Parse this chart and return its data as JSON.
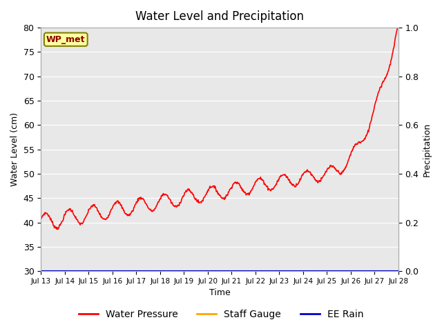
{
  "title": "Water Level and Precipitation",
  "xlabel": "Time",
  "ylabel_left": "Water Level (cm)",
  "ylabel_right": "Precipitation",
  "annotation_text": "WP_met",
  "annotation_bg": "#FFFFA0",
  "annotation_border": "#808000",
  "annotation_text_color": "#8B0000",
  "ylim_left": [
    30,
    80
  ],
  "ylim_right": [
    0.0,
    1.0
  ],
  "yticks_left": [
    30,
    35,
    40,
    45,
    50,
    55,
    60,
    65,
    70,
    75,
    80
  ],
  "yticks_right": [
    0.0,
    0.2,
    0.4,
    0.6,
    0.8,
    1.0
  ],
  "xtick_labels": [
    "Jul 13",
    "Jul 14",
    "Jul 15",
    "Jul 16",
    "Jul 17",
    "Jul 18",
    "Jul 19",
    "Jul 20",
    "Jul 21",
    "Jul 22",
    "Jul 23",
    "Jul 24",
    "Jul 25",
    "Jul 26",
    "Jul 27",
    "Jul 28"
  ],
  "bg_color": "#E8E8E8",
  "legend_entries": [
    "Water Pressure",
    "Staff Gauge",
    "EE Rain"
  ],
  "legend_colors": [
    "#FF0000",
    "#FFA500",
    "#0000CD"
  ],
  "water_pressure_color": "#FF0000",
  "staff_gauge_color": "#FFA500",
  "ee_rain_color": "#0000CD",
  "water_pressure_lw": 1.2,
  "staff_gauge_lw": 1.5,
  "ee_rain_lw": 1.5
}
